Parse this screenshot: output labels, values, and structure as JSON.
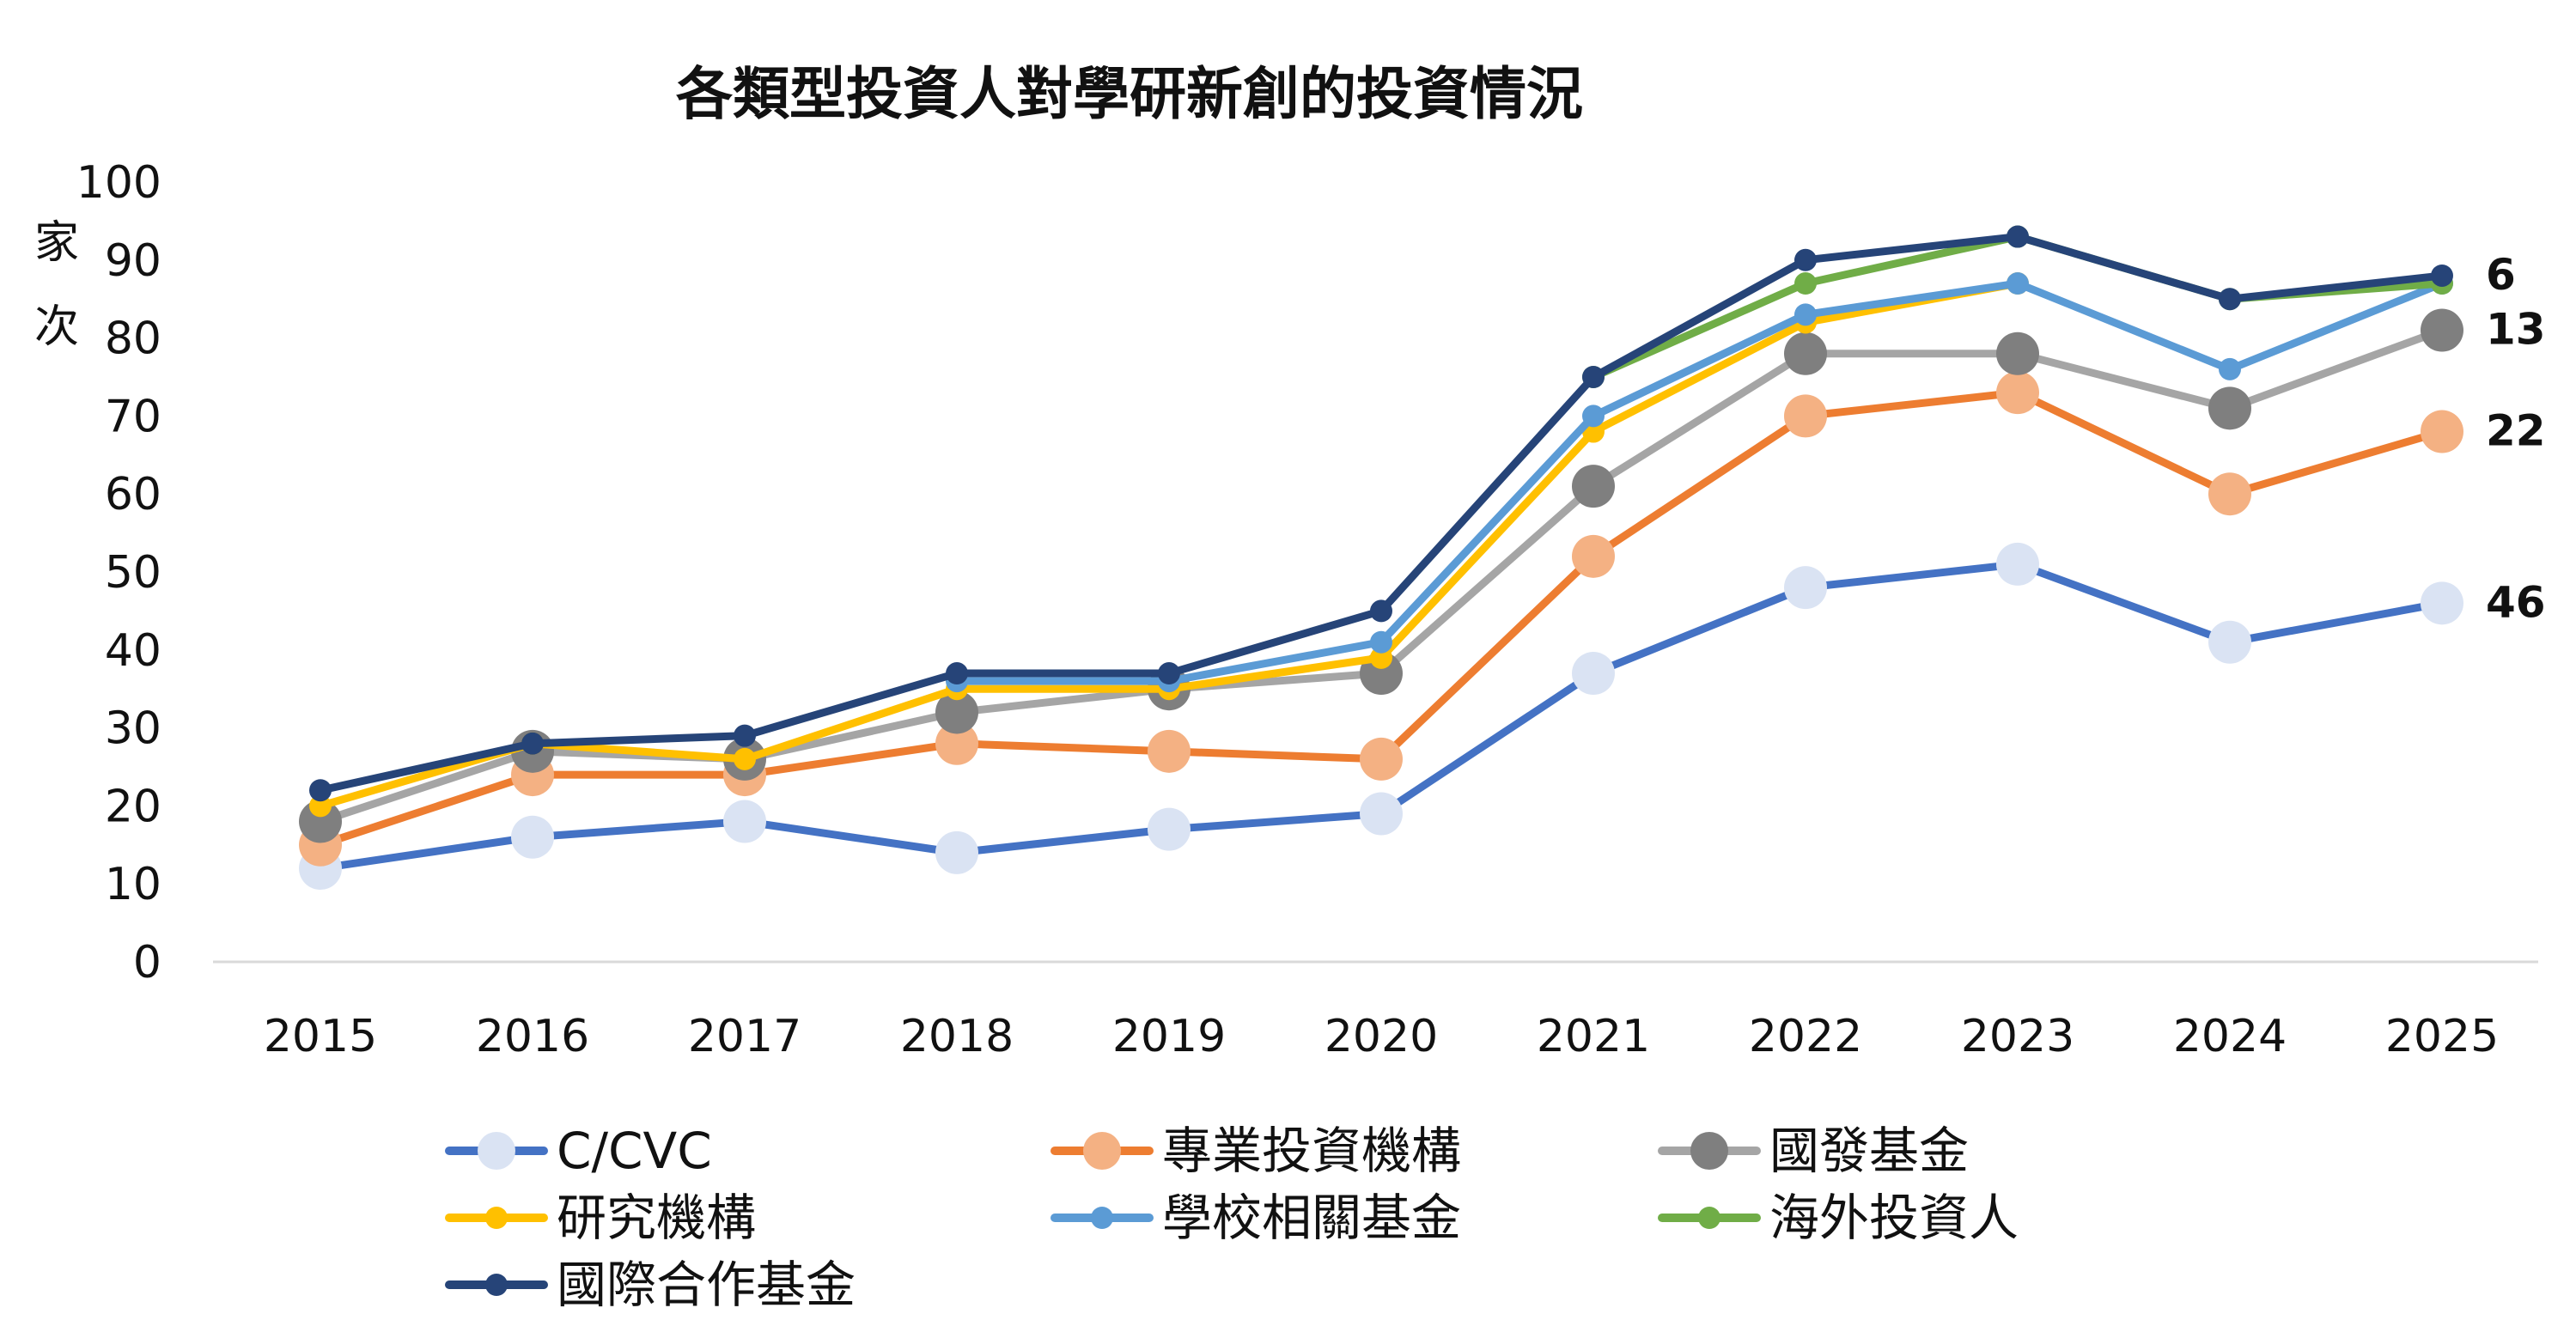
{
  "chart_data": {
    "type": "line",
    "title": "各類型投資人對學研新創的投資情況",
    "ylabel": "家次",
    "xlabel": "",
    "ylim": [
      0,
      100
    ],
    "yticks": [
      0,
      10,
      20,
      30,
      40,
      50,
      60,
      70,
      80,
      90,
      100
    ],
    "grid": false,
    "legend_position": "bottom",
    "categories": [
      "2015",
      "2016",
      "2017",
      "2018",
      "2019",
      "2020",
      "2021",
      "2022",
      "2023",
      "2024",
      "2025"
    ],
    "series": [
      {
        "name": "C/CVC",
        "color": "#4472C4",
        "marker_color": "#DAE3F3",
        "marker": "large",
        "values": [
          12,
          16,
          18,
          14,
          17,
          19,
          37,
          48,
          51,
          41,
          46
        ]
      },
      {
        "name": "專業投資機構",
        "color": "#ED7D31",
        "marker_color": "#F4B183",
        "marker": "large",
        "values": [
          15,
          24,
          24,
          28,
          27,
          26,
          52,
          70,
          73,
          60,
          68
        ]
      },
      {
        "name": "國發基金",
        "color": "#A5A5A5",
        "marker_color": "#7F7F7F",
        "marker": "large",
        "values": [
          18,
          27,
          26,
          32,
          35,
          37,
          61,
          78,
          78,
          71,
          81
        ]
      },
      {
        "name": "研究機構",
        "color": "#FFC000",
        "marker_color": "#FFC000",
        "marker": "small",
        "values": [
          20,
          28,
          26,
          35,
          35,
          39,
          68,
          82,
          87,
          null,
          null
        ]
      },
      {
        "name": "學校相關基金",
        "color": "#5B9BD5",
        "marker_color": "#5B9BD5",
        "marker": "small",
        "values": [
          null,
          null,
          null,
          36,
          36,
          41,
          70,
          83,
          87,
          76,
          87
        ]
      },
      {
        "name": "海外投資人",
        "color": "#70AD47",
        "marker_color": "#70AD47",
        "marker": "small",
        "values": [
          null,
          null,
          null,
          null,
          null,
          null,
          75,
          87,
          93,
          85,
          87
        ]
      },
      {
        "name": "國際合作基金",
        "color": "#264478",
        "marker_color": "#264478",
        "marker": "small",
        "values": [
          22,
          28,
          29,
          37,
          37,
          45,
          75,
          90,
          93,
          85,
          88
        ]
      }
    ],
    "annotations": [
      {
        "text": "6",
        "anchor_series": "國際合作基金"
      },
      {
        "text": "13",
        "anchor_series": "國發基金"
      },
      {
        "text": "22",
        "anchor_series": "專業投資機構"
      },
      {
        "text": "46",
        "anchor_series": "C/CVC"
      }
    ]
  }
}
